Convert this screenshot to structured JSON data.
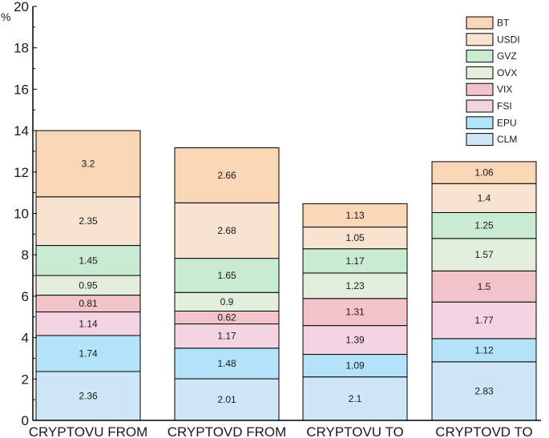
{
  "chart_data": {
    "type": "bar",
    "stacked": true,
    "ylabel": "%",
    "ylim": [
      0,
      20
    ],
    "yticks": [
      "0",
      "2",
      "4",
      "6",
      "8",
      "10",
      "12",
      "14",
      "16",
      "18",
      "20"
    ],
    "categories": [
      "CRYPTOVU FROM",
      "CRYPTOVD FROM",
      "CRYPTOVU TO",
      "CRYPTOVD TO"
    ],
    "legend_position": "top-right",
    "series": [
      {
        "name": "CLM",
        "color": "#cfe6f7",
        "values": [
          2.36,
          2.01,
          2.1,
          2.83
        ],
        "labels": [
          "2.36",
          "2.01",
          "2.1",
          "2.83"
        ]
      },
      {
        "name": "EPU",
        "color": "#b3e3f8",
        "values": [
          1.74,
          1.48,
          1.09,
          1.12
        ],
        "labels": [
          "1.74",
          "1.48",
          "1.09",
          "1.12"
        ]
      },
      {
        "name": "FSI",
        "color": "#f5d4e2",
        "values": [
          1.14,
          1.17,
          1.39,
          1.77
        ],
        "labels": [
          "1.14",
          "1.17",
          "1.39",
          "1.77"
        ]
      },
      {
        "name": "VIX",
        "color": "#f2c3c8",
        "values": [
          0.81,
          0.62,
          1.31,
          1.5
        ],
        "labels": [
          "0.81",
          "0.62",
          "1.31",
          "1.5"
        ]
      },
      {
        "name": "OVX",
        "color": "#e3efdc",
        "values": [
          0.95,
          0.9,
          1.23,
          1.57
        ],
        "labels": [
          "0.95",
          "0.9",
          "1.23",
          "1.57"
        ]
      },
      {
        "name": "GVZ",
        "color": "#c9ebd2",
        "values": [
          1.45,
          1.65,
          1.17,
          1.25
        ],
        "labels": [
          "1.45",
          "1.65",
          "1.17",
          "1.25"
        ]
      },
      {
        "name": "USDI",
        "color": "#f8e2d0",
        "values": [
          2.35,
          2.68,
          1.05,
          1.4
        ],
        "labels": [
          "2.35",
          "2.68",
          "1.05",
          "1.4"
        ]
      },
      {
        "name": "BT",
        "color": "#f8d6b6",
        "values": [
          3.2,
          2.66,
          1.13,
          1.06
        ],
        "labels": [
          "3.2",
          "2.66",
          "1.13",
          "1.06"
        ]
      }
    ]
  }
}
